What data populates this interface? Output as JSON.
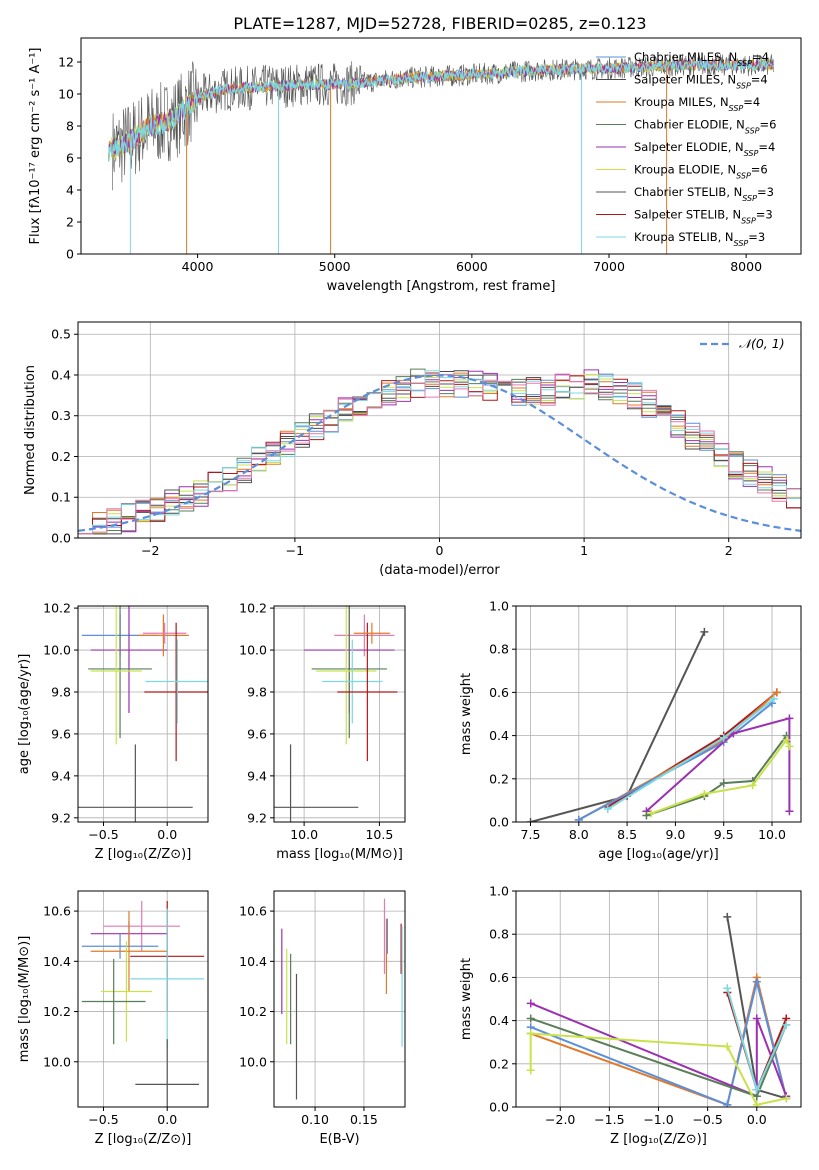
{
  "figure": {
    "title": "PLATE=1287, MJD=52728, FIBERID=0285, z=0.123",
    "colors": {
      "chabrier_miles": "#5b8fdb",
      "salpeter_miles": "#4a4a4a",
      "kroupa_miles": "#e07a2a",
      "chabrier_elodie": "#5a7d5a",
      "salpeter_elodie": "#9b30b0",
      "kroupa_elodie": "#c8e34a",
      "chabrier_stelib": "#555555",
      "salpeter_stelib": "#b01818",
      "kroupa_stelib": "#7dd8e0",
      "gaussian": "#5b8fdb",
      "extra_pink": "#e37ab0"
    }
  },
  "chart_data": [
    {
      "id": "spectrum",
      "type": "line",
      "xlabel": "wavelength [Angstrom, rest frame]",
      "ylabel": "Flux [fλ10⁻¹⁷ erg cm⁻² s⁻¹ A⁻¹]",
      "xlim": [
        3150,
        8400
      ],
      "ylim": [
        0,
        13.5
      ],
      "xticks": [
        4000,
        5000,
        6000,
        7000,
        8000
      ],
      "yticks": [
        0,
        2,
        4,
        6,
        8,
        10,
        12
      ],
      "grid": false,
      "legend_position": "right",
      "legend": [
        {
          "label": "Chabrier MILES, N",
          "sub": "SSP",
          "tail": "=4",
          "color_key": "chabrier_miles"
        },
        {
          "label": "Salpeter MILES, N",
          "sub": "SSP",
          "tail": "=4",
          "color_key": "salpeter_miles"
        },
        {
          "label": "Kroupa MILES, N",
          "sub": "SSP",
          "tail": "=4",
          "color_key": "kroupa_miles"
        },
        {
          "label": "Chabrier ELODIE, N",
          "sub": "SSP",
          "tail": "=6",
          "color_key": "chabrier_elodie"
        },
        {
          "label": "Salpeter ELODIE, N",
          "sub": "SSP",
          "tail": "=4",
          "color_key": "salpeter_elodie"
        },
        {
          "label": "Kroupa ELODIE, N",
          "sub": "SSP",
          "tail": "=6",
          "color_key": "kroupa_elodie"
        },
        {
          "label": "Chabrier STELIB, N",
          "sub": "SSP",
          "tail": "=3",
          "color_key": "chabrier_stelib"
        },
        {
          "label": "Salpeter STELIB, N",
          "sub": "SSP",
          "tail": "=3",
          "color_key": "salpeter_stelib"
        },
        {
          "label": "Kroupa STELIB, N",
          "sub": "SSP",
          "tail": "=3",
          "color_key": "kroupa_stelib"
        }
      ],
      "continuum": [
        [
          3350,
          6.5
        ],
        [
          3450,
          6.8
        ],
        [
          3550,
          7.3
        ],
        [
          3650,
          8.0
        ],
        [
          3750,
          8.2
        ],
        [
          3850,
          8.6
        ],
        [
          3950,
          9.4
        ],
        [
          4050,
          9.9
        ],
        [
          4200,
          10.3
        ],
        [
          4400,
          10.4
        ],
        [
          4600,
          10.5
        ],
        [
          4800,
          10.6
        ],
        [
          5000,
          10.6
        ],
        [
          5200,
          10.7
        ],
        [
          5500,
          11.0
        ],
        [
          6000,
          11.2
        ],
        [
          6500,
          11.5
        ],
        [
          7000,
          11.6
        ],
        [
          7500,
          11.8
        ],
        [
          8000,
          11.8
        ],
        [
          8200,
          11.8
        ]
      ],
      "sky_drops": [
        [
          3510,
          0.0
        ],
        [
          3920,
          0.0
        ],
        [
          4590,
          0.0
        ],
        [
          4970,
          0.0
        ],
        [
          6800,
          0.0
        ],
        [
          7420,
          0.0
        ]
      ]
    },
    {
      "id": "residuals",
      "type": "histogram",
      "xlabel": "(data-model)/error",
      "ylabel": "Normed distribution",
      "xlim": [
        -2.5,
        2.5
      ],
      "ylim": [
        0,
        0.53
      ],
      "xticks": [
        -2,
        -1,
        0,
        1,
        2
      ],
      "yticks": [
        0.0,
        0.1,
        0.2,
        0.3,
        0.4,
        0.5
      ],
      "grid": true,
      "legend_position": "top-right",
      "legend": [
        {
          "label": "𝒩(0, 1)",
          "color_key": "gaussian"
        }
      ],
      "bin_width": 0.1,
      "base_values": [
        0.02,
        0.03,
        0.04,
        0.05,
        0.06,
        0.07,
        0.09,
        0.1,
        0.11,
        0.13,
        0.15,
        0.17,
        0.19,
        0.21,
        0.23,
        0.25,
        0.27,
        0.29,
        0.31,
        0.33,
        0.35,
        0.36,
        0.37,
        0.38,
        0.38,
        0.38,
        0.38,
        0.38,
        0.37,
        0.36,
        0.36,
        0.36,
        0.36,
        0.37,
        0.37,
        0.38,
        0.37,
        0.36,
        0.35,
        0.33,
        0.31,
        0.28,
        0.25,
        0.23,
        0.2,
        0.18,
        0.16,
        0.14,
        0.12,
        0.1
      ]
    },
    {
      "id": "age_vs_z",
      "type": "scatter",
      "xlabel": "Z [log₁₀(Z/Z⊙)]",
      "ylabel": "age  [log₁₀(age/yr)]",
      "xlim": [
        -0.7,
        0.32
      ],
      "ylim": [
        9.18,
        10.21
      ],
      "xticks": [
        -0.5,
        0.0
      ],
      "yticks": [
        9.2,
        9.4,
        9.6,
        9.8,
        10.0,
        10.2
      ],
      "grid": true,
      "points": [
        {
          "x": -0.37,
          "y": 10.07,
          "xerr": 0.3,
          "yerr": 0.1,
          "color_key": "chabrier_miles"
        },
        {
          "x": -0.3,
          "y": 10.0,
          "xerr": 0.3,
          "yerr": 0.3,
          "color_key": "salpeter_elodie"
        },
        {
          "x": -0.37,
          "y": 9.91,
          "xerr": 0.25,
          "yerr": 0.33,
          "color_key": "chabrier_elodie"
        },
        {
          "x": -0.4,
          "y": 9.9,
          "xerr": 0.2,
          "yerr": 0.35,
          "color_key": "kroupa_elodie"
        },
        {
          "x": -0.03,
          "y": 10.07,
          "xerr": 0.2,
          "yerr": 0.1,
          "color_key": "kroupa_miles"
        },
        {
          "x": -0.02,
          "y": 10.08,
          "xerr": 0.17,
          "yerr": 0.05,
          "color_key": "extra_pink"
        },
        {
          "x": 0.07,
          "y": 9.8,
          "xerr": 0.25,
          "yerr": 0.33,
          "color_key": "salpeter_stelib"
        },
        {
          "x": 0.08,
          "y": 9.85,
          "xerr": 0.25,
          "yerr": 0.2,
          "color_key": "kroupa_stelib"
        },
        {
          "x": -0.25,
          "y": 9.25,
          "xerr": 0.45,
          "yerr": 0.3,
          "color_key": "chabrier_stelib"
        }
      ]
    },
    {
      "id": "age_vs_mass",
      "type": "scatter",
      "xlabel": "mass [log₁₀(M/M⊙)]",
      "ylabel": "",
      "xlim": [
        9.8,
        10.67
      ],
      "ylim": [
        9.18,
        10.21
      ],
      "xticks": [
        10.0,
        10.5
      ],
      "yticks": [
        9.2,
        9.4,
        9.6,
        9.8,
        10.0,
        10.2
      ],
      "grid": true,
      "points": [
        {
          "x": 10.4,
          "y": 10.07,
          "xerr": 0.2,
          "yerr": 0.1,
          "color_key": "extra_pink"
        },
        {
          "x": 10.3,
          "y": 10.0,
          "xerr": 0.3,
          "yerr": 0.3,
          "color_key": "salpeter_elodie"
        },
        {
          "x": 10.3,
          "y": 9.91,
          "xerr": 0.25,
          "yerr": 0.33,
          "color_key": "chabrier_elodie"
        },
        {
          "x": 10.28,
          "y": 9.9,
          "xerr": 0.2,
          "yerr": 0.35,
          "color_key": "kroupa_elodie"
        },
        {
          "x": 10.32,
          "y": 9.85,
          "xerr": 0.2,
          "yerr": 0.2,
          "color_key": "kroupa_stelib"
        },
        {
          "x": 10.42,
          "y": 9.8,
          "xerr": 0.2,
          "yerr": 0.33,
          "color_key": "salpeter_stelib"
        },
        {
          "x": 10.45,
          "y": 10.08,
          "xerr": 0.12,
          "yerr": 0.05,
          "color_key": "kroupa_miles"
        },
        {
          "x": 9.91,
          "y": 9.25,
          "xerr": 0.45,
          "yerr": 0.3,
          "color_key": "chabrier_stelib"
        }
      ]
    },
    {
      "id": "massweight_vs_age",
      "type": "line",
      "xlabel": "age  [log₁₀(age/yr)]",
      "ylabel": "mass weight",
      "xlim": [
        7.35,
        10.3
      ],
      "ylim": [
        0,
        1.0
      ],
      "xticks": [
        7.5,
        8.0,
        8.5,
        9.0,
        9.5,
        10.0
      ],
      "yticks": [
        0.0,
        0.2,
        0.4,
        0.6,
        0.8,
        1.0
      ],
      "grid": true,
      "series": [
        {
          "color_key": "chabrier_stelib",
          "x": [
            7.5,
            8.5,
            9.3
          ],
          "y": [
            0.0,
            0.12,
            0.88
          ]
        },
        {
          "color_key": "salpeter_stelib",
          "x": [
            8.3,
            9.5,
            10.05
          ],
          "y": [
            0.07,
            0.4,
            0.6
          ]
        },
        {
          "color_key": "kroupa_miles",
          "x": [
            8.0,
            9.5,
            10.05
          ],
          "y": [
            0.01,
            0.38,
            0.6
          ]
        },
        {
          "color_key": "chabrier_miles",
          "x": [
            8.0,
            9.5,
            10.0
          ],
          "y": [
            0.01,
            0.37,
            0.55
          ]
        },
        {
          "color_key": "salpeter_elodie",
          "x": [
            8.7,
            9.6,
            10.18,
            10.18
          ],
          "y": [
            0.05,
            0.41,
            0.48,
            0.05
          ]
        },
        {
          "color_key": "chabrier_elodie",
          "x": [
            8.7,
            9.3,
            9.5,
            9.8,
            10.15
          ],
          "y": [
            0.03,
            0.12,
            0.18,
            0.19,
            0.4
          ]
        },
        {
          "color_key": "kroupa_elodie",
          "x": [
            8.75,
            9.3,
            9.8,
            10.15,
            10.18
          ],
          "y": [
            0.04,
            0.13,
            0.17,
            0.38,
            0.35
          ]
        },
        {
          "color_key": "kroupa_stelib",
          "x": [
            8.3,
            9.5,
            10.02
          ],
          "y": [
            0.06,
            0.39,
            0.57
          ]
        }
      ]
    },
    {
      "id": "mass_vs_z",
      "type": "scatter",
      "xlabel": "Z [log₁₀(Z/Z⊙)]",
      "ylabel": "mass [log₁₀(M/M⊙)]",
      "xlim": [
        -0.7,
        0.32
      ],
      "ylim": [
        9.82,
        10.68
      ],
      "xticks": [
        -0.5,
        0.0
      ],
      "yticks": [
        10.0,
        10.2,
        10.4,
        10.6
      ],
      "grid": true,
      "points": [
        {
          "x": -0.2,
          "y": 10.54,
          "xerr": 0.3,
          "yerr": 0.1,
          "color_key": "extra_pink"
        },
        {
          "x": -0.3,
          "y": 10.51,
          "xerr": 0.3,
          "yerr": 0.05,
          "color_key": "salpeter_elodie"
        },
        {
          "x": -0.37,
          "y": 10.46,
          "xerr": 0.3,
          "yerr": 0.05,
          "color_key": "chabrier_miles"
        },
        {
          "x": -0.3,
          "y": 10.44,
          "xerr": 0.3,
          "yerr": 0.16,
          "color_key": "kroupa_miles"
        },
        {
          "x": 0.0,
          "y": 10.42,
          "xerr": 0.29,
          "yerr": 0.22,
          "color_key": "salpeter_stelib"
        },
        {
          "x": 0.0,
          "y": 10.33,
          "xerr": 0.29,
          "yerr": 0.28,
          "color_key": "kroupa_stelib"
        },
        {
          "x": -0.32,
          "y": 10.28,
          "xerr": 0.2,
          "yerr": 0.2,
          "color_key": "kroupa_elodie"
        },
        {
          "x": -0.42,
          "y": 10.24,
          "xerr": 0.25,
          "yerr": 0.17,
          "color_key": "chabrier_elodie"
        },
        {
          "x": 0.0,
          "y": 9.91,
          "xerr": 0.25,
          "yerr": 0.18,
          "color_key": "chabrier_stelib"
        }
      ]
    },
    {
      "id": "mass_vs_ebv",
      "type": "scatter",
      "xlabel": "E(B-V)",
      "ylabel": "",
      "xlim": [
        0.058,
        0.192
      ],
      "ylim": [
        9.82,
        10.68
      ],
      "xticks": [
        0.1,
        0.15
      ],
      "yticks": [
        10.0,
        10.2,
        10.4,
        10.6
      ],
      "grid": true,
      "points": [
        {
          "x": 0.066,
          "y": 10.36,
          "xerr": 0,
          "yerr": 0.17,
          "color_key": "salpeter_elodie"
        },
        {
          "x": 0.071,
          "y": 10.26,
          "xerr": 0,
          "yerr": 0.19,
          "color_key": "kroupa_elodie"
        },
        {
          "x": 0.075,
          "y": 10.25,
          "xerr": 0,
          "yerr": 0.18,
          "color_key": "chabrier_elodie"
        },
        {
          "x": 0.081,
          "y": 10.1,
          "xerr": 0,
          "yerr": 0.25,
          "color_key": "chabrier_stelib"
        },
        {
          "x": 0.171,
          "y": 10.5,
          "xerr": 0,
          "yerr": 0.15,
          "color_key": "extra_pink"
        },
        {
          "x": 0.173,
          "y": 10.42,
          "xerr": 0,
          "yerr": 0.15,
          "color_key": "kroupa_miles"
        },
        {
          "x": 0.174,
          "y": 10.5,
          "xerr": 0,
          "yerr": 0.07,
          "color_key": "chabrier_miles"
        },
        {
          "x": 0.188,
          "y": 10.45,
          "xerr": 0,
          "yerr": 0.1,
          "color_key": "salpeter_stelib"
        },
        {
          "x": 0.189,
          "y": 10.3,
          "xerr": 0,
          "yerr": 0.24,
          "color_key": "kroupa_stelib"
        }
      ]
    },
    {
      "id": "massweight_vs_z",
      "type": "line",
      "xlabel": "Z [log₁₀(Z/Z⊙)]",
      "ylabel": "mass weight",
      "xlim": [
        -2.45,
        0.45
      ],
      "ylim": [
        0,
        1.0
      ],
      "xticks": [
        -2.0,
        -1.5,
        -1.0,
        -0.5,
        0.0
      ],
      "yticks": [
        0.0,
        0.2,
        0.4,
        0.6,
        0.8,
        1.0
      ],
      "grid": true,
      "series": [
        {
          "color_key": "chabrier_stelib",
          "x": [
            -0.3,
            0.0,
            0.3
          ],
          "y": [
            0.88,
            0.08,
            0.04
          ]
        },
        {
          "color_key": "salpeter_stelib",
          "x": [
            -0.3,
            0.0,
            0.3
          ],
          "y": [
            0.53,
            0.08,
            0.41
          ]
        },
        {
          "color_key": "kroupa_miles",
          "x": [
            -2.3,
            -0.3,
            0.0,
            0.3
          ],
          "y": [
            0.34,
            0.01,
            0.6,
            0.04
          ]
        },
        {
          "color_key": "chabrier_miles",
          "x": [
            -2.3,
            -0.3,
            0.0,
            0.3
          ],
          "y": [
            0.37,
            0.01,
            0.58,
            0.04
          ]
        },
        {
          "color_key": "salpeter_elodie",
          "x": [
            -2.3,
            0.0,
            0.0,
            0.3
          ],
          "y": [
            0.48,
            0.05,
            0.41,
            0.05
          ]
        },
        {
          "color_key": "chabrier_elodie",
          "x": [
            -2.3,
            0.0,
            0.3
          ],
          "y": [
            0.41,
            0.05,
            0.38
          ]
        },
        {
          "color_key": "kroupa_elodie",
          "x": [
            -2.3,
            -2.3,
            -0.3,
            0.0,
            0.3
          ],
          "y": [
            0.17,
            0.34,
            0.28,
            0.01,
            0.04
          ]
        },
        {
          "color_key": "kroupa_stelib",
          "x": [
            -0.3,
            0.0,
            0.3
          ],
          "y": [
            0.55,
            0.08,
            0.38
          ]
        }
      ]
    }
  ]
}
